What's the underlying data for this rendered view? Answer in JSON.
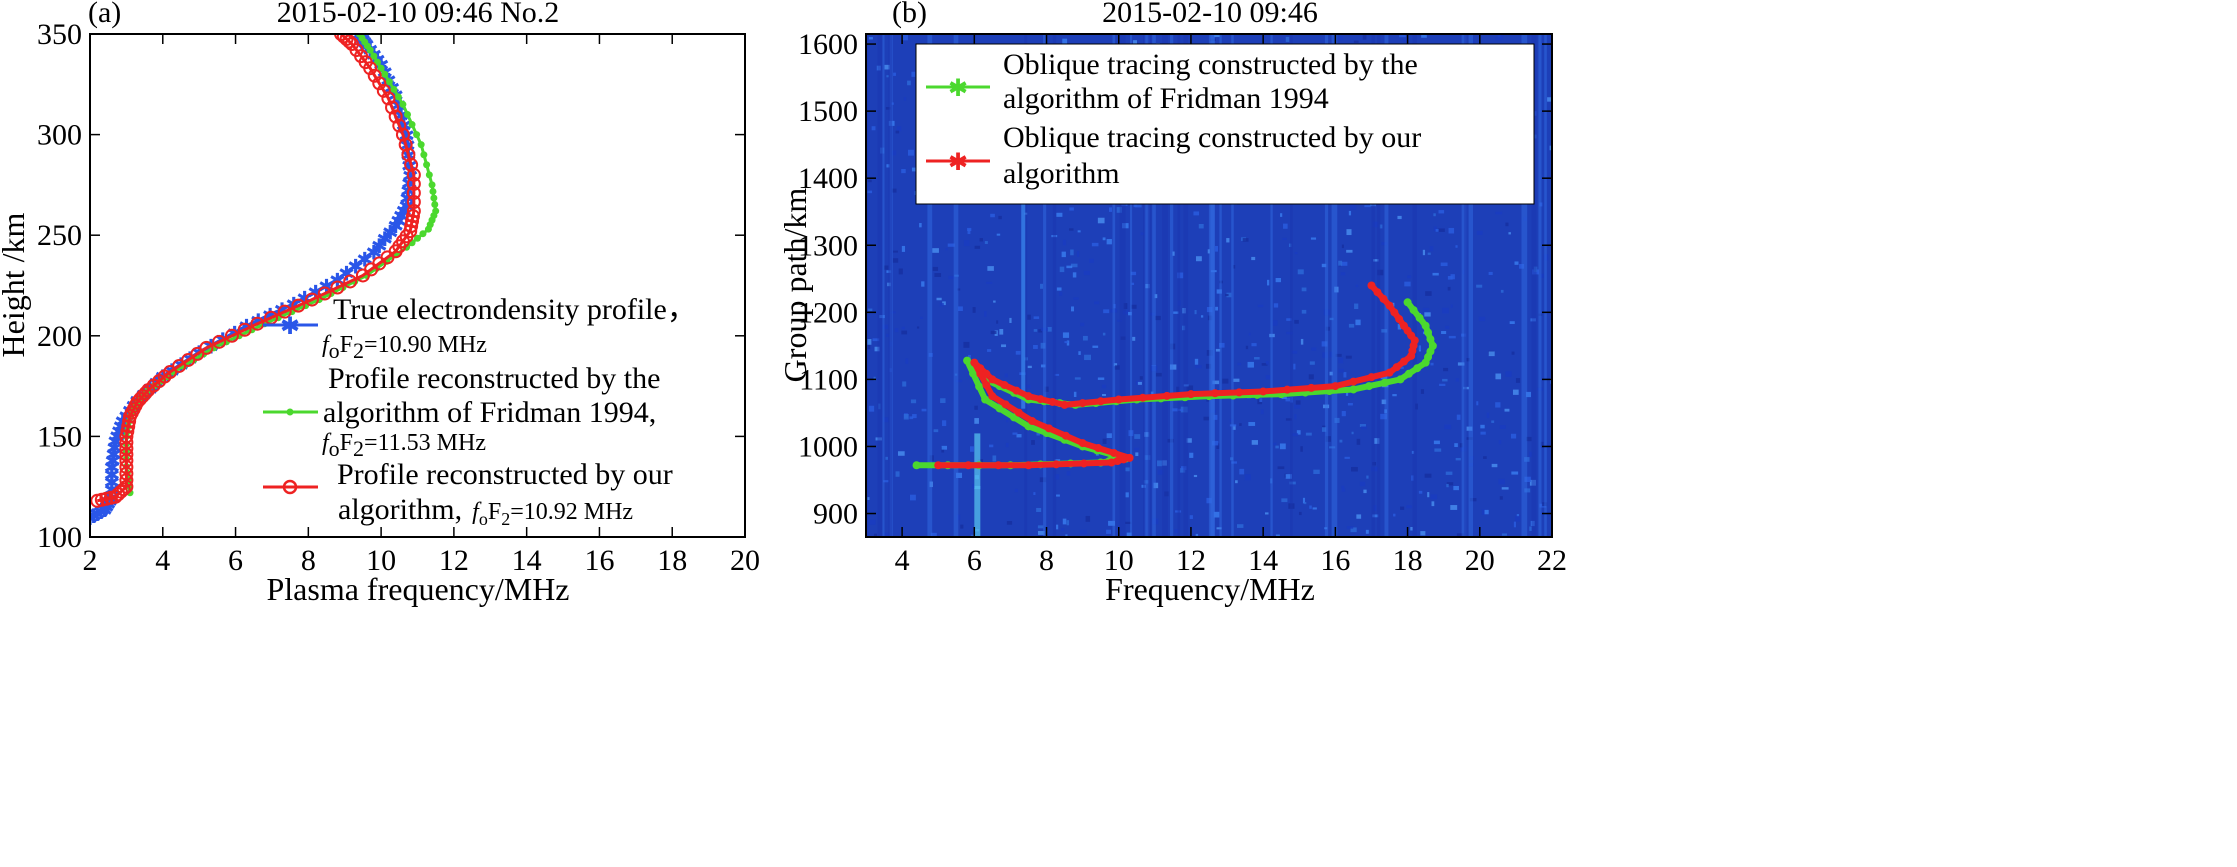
{
  "chart_data": [
    {
      "panel_label": "(a)",
      "type": "line",
      "title": "2015-02-10  09:46  No.2",
      "xlabel": "Plasma frequency/MHz",
      "ylabel": "Height /km",
      "xlim": [
        2,
        20
      ],
      "ylim": [
        100,
        350
      ],
      "xticks": [
        "2",
        "4",
        "6",
        "8",
        "10",
        "12",
        "14",
        "16",
        "18",
        "20"
      ],
      "yticks": [
        "100",
        "150",
        "200",
        "250",
        "300",
        "350"
      ],
      "legend_position": "lower-right",
      "series": [
        {
          "name": "True electrondensity profile",
          "legend_line1": "True electrondensity profile，",
          "fof2_label": "=10.90 MHz",
          "color": "#2a56e8",
          "marker": "star",
          "x": [
            2.0,
            2.4,
            2.6,
            2.6,
            2.7,
            2.9,
            3.3,
            4.0,
            5.0,
            6.3,
            7.6,
            8.8,
            9.8,
            10.4,
            10.7,
            10.8,
            10.7,
            10.4,
            10.0,
            9.6,
            9.4
          ],
          "y": [
            110,
            114,
            120,
            135,
            148,
            158,
            168,
            180,
            192,
            205,
            216,
            228,
            242,
            255,
            265,
            280,
            300,
            320,
            335,
            345,
            350
          ]
        },
        {
          "name": "Profile reconstructed by the algorithm of Fridman 1994",
          "legend_line1": "Profile reconstructed by the",
          "legend_line2": "algorithm of Fridman 1994,",
          "fof2_label": "=11.53 MHz",
          "color": "#4bd82e",
          "marker": "dot",
          "x": [
            3.1,
            3.0,
            3.0,
            3.1,
            3.3,
            3.6,
            4.3,
            5.4,
            6.8,
            8.3,
            9.6,
            10.7,
            11.3,
            11.5,
            11.4,
            11.1,
            10.6,
            10.1,
            9.7,
            9.4
          ],
          "y": [
            122,
            135,
            150,
            160,
            167,
            173,
            182,
            194,
            206,
            218,
            230,
            244,
            253,
            262,
            275,
            295,
            315,
            330,
            342,
            350
          ]
        },
        {
          "name": "Profile reconstructed by our algorithm",
          "legend_line1": "Profile reconstructed by our",
          "legend_line2": "algorithm,",
          "fof2_label": "=10.92 MHz",
          "color": "#ee2222",
          "marker": "circle",
          "x": [
            2.2,
            2.7,
            3.0,
            3.0,
            3.0,
            3.1,
            3.3,
            3.6,
            4.2,
            5.2,
            6.6,
            8.1,
            9.5,
            10.4,
            10.8,
            10.9,
            10.9,
            10.6,
            10.2,
            9.7,
            9.2,
            8.9
          ],
          "y": [
            118,
            120,
            125,
            138,
            150,
            160,
            167,
            173,
            182,
            194,
            206,
            218,
            230,
            242,
            252,
            262,
            280,
            300,
            318,
            333,
            345,
            350
          ]
        }
      ]
    },
    {
      "panel_label": "(b)",
      "type": "heatmap",
      "title": "2015-02-10  09:46",
      "xlabel": "Frequency/MHz",
      "ylabel": "Group path/km",
      "xlim": [
        3,
        22
      ],
      "ylim": [
        865,
        1615
      ],
      "xticks": [
        "4",
        "6",
        "8",
        "10",
        "12",
        "14",
        "16",
        "18",
        "20",
        "22"
      ],
      "yticks": [
        "900",
        "1000",
        "1100",
        "1200",
        "1300",
        "1400",
        "1500",
        "1600"
      ],
      "legend_position": "top",
      "series": [
        {
          "name": "Oblique tracing constructed by the algorithm of Fridman 1994",
          "legend_line1": "Oblique tracing constructed by the",
          "legend_line2": "algorithm of Fridman 1994",
          "color": "#4bd82e",
          "x": [
            4.4,
            7.0,
            9.5,
            10.2,
            9.0,
            7.5,
            6.3,
            5.8,
            6.3,
            7.5,
            8.8,
            10.5,
            12.5,
            14.5,
            16.5,
            17.8,
            18.5,
            18.7,
            18.5,
            18.0
          ],
          "y": [
            972,
            972,
            976,
            982,
            1000,
            1030,
            1070,
            1128,
            1100,
            1070,
            1062,
            1070,
            1075,
            1078,
            1085,
            1100,
            1125,
            1150,
            1180,
            1215
          ]
        },
        {
          "name": "Oblique tracing constructed by our algorithm",
          "legend_line1": "Oblique tracing constructed by our",
          "legend_line2": "algorithm",
          "color": "#ee2222",
          "x": [
            5.0,
            7.5,
            9.8,
            10.3,
            9.0,
            7.6,
            6.5,
            6.0,
            6.5,
            7.5,
            8.5,
            10.0,
            12.0,
            14.0,
            16.0,
            17.5,
            18.1,
            18.2,
            17.9,
            17.5,
            17.0
          ],
          "y": [
            972,
            972,
            976,
            983,
            1005,
            1038,
            1075,
            1125,
            1100,
            1075,
            1062,
            1070,
            1078,
            1082,
            1090,
            1110,
            1135,
            1158,
            1180,
            1210,
            1240
          ]
        }
      ]
    }
  ],
  "legend_fof2_prefix": "f",
  "legend_fof2_sub": "o",
  "legend_fof2_F": "F",
  "legend_fof2_sub2": "2"
}
